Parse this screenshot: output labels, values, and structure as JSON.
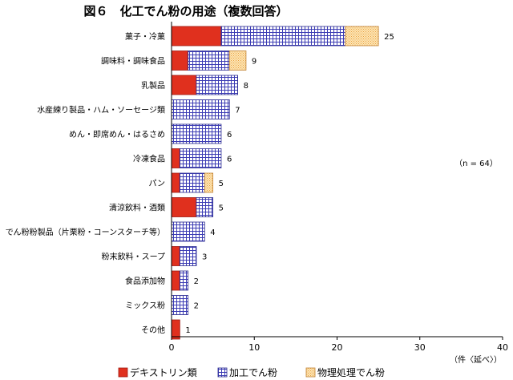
{
  "chart_data": {
    "type": "bar",
    "orientation": "horizontal",
    "stacked": true,
    "title": "図６　化工でん粉の用途（複数回答）",
    "annotation": "（n = 64）",
    "xlabel": "（件〈延べ〉）",
    "xlim": [
      0,
      40
    ],
    "xticks": [
      0,
      10,
      20,
      30,
      40
    ],
    "grid": false,
    "legend_position": "bottom",
    "categories": [
      "菓子・冷菓",
      "調味料・調味食品",
      "乳製品",
      "水産練り製品・ハム・ソーセージ類",
      "めん・即席めん・はるさめ",
      "冷凍食品",
      "パン",
      "清涼飲料・酒類",
      "でん粉粉製品（片栗粉・コーンスターチ等）",
      "粉末飲料・スープ",
      "食品添加物",
      "ミックス粉",
      "その他"
    ],
    "series": [
      {
        "name": "デキストリン類",
        "color": "#e0301e",
        "pattern": "solid",
        "values": [
          6,
          2,
          3,
          0,
          0,
          1,
          1,
          3,
          0,
          1,
          1,
          0,
          1
        ]
      },
      {
        "name": "加工でん粉",
        "color": "#3c3cb4",
        "pattern": "grid",
        "values": [
          15,
          5,
          5,
          7,
          6,
          5,
          3,
          2,
          4,
          2,
          1,
          2,
          0
        ]
      },
      {
        "name": "物理処理でん粉",
        "color": "#f5c070",
        "pattern": "dots",
        "values": [
          4,
          2,
          0,
          0,
          0,
          0,
          1,
          0,
          0,
          0,
          0,
          0,
          0
        ]
      }
    ],
    "totals": [
      25,
      9,
      8,
      7,
      6,
      6,
      5,
      5,
      4,
      3,
      2,
      2,
      1
    ]
  }
}
